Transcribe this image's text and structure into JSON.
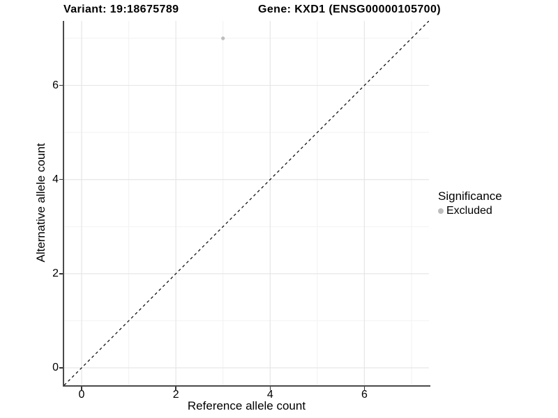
{
  "titles": {
    "left": "Variant: 19:18675789",
    "right": "Gene: KXD1 (ENSG00000105700)"
  },
  "axes": {
    "x": {
      "label": "Reference allele count"
    },
    "y": {
      "label": "Alternative allele count"
    }
  },
  "legend": {
    "title": "Significance",
    "items": [
      {
        "label": "Excluded",
        "color": "#bdbdbd"
      }
    ]
  },
  "colors": {
    "point": "#bdbdbd",
    "axis_line": "#4a4a4a",
    "grid_major": "#e6e6e6",
    "grid_minor": "#f2f2f2",
    "identity_line": "#000000"
  },
  "chart_data": {
    "type": "scatter",
    "title": "Variant: 19:18675789 | Gene: KXD1 (ENSG00000105700)",
    "xlabel": "Reference allele count",
    "ylabel": "Alternative allele count",
    "xlim": [
      -0.37,
      7.37
    ],
    "ylim": [
      -0.37,
      7.37
    ],
    "x_ticks": [
      0,
      2,
      4,
      6
    ],
    "y_ticks": [
      0,
      2,
      4,
      6
    ],
    "grid_major": [
      0,
      2,
      4,
      6
    ],
    "grid_minor": [
      1,
      3,
      5,
      7
    ],
    "series": [
      {
        "name": "Excluded",
        "color": "#bdbdbd",
        "points": [
          {
            "x": 3,
            "y": 7
          }
        ]
      }
    ],
    "identity_line": {
      "style": "dashed",
      "from": [
        -0.37,
        -0.37
      ],
      "to": [
        7.37,
        7.37
      ]
    },
    "legend_position": "right",
    "legend_title": "Significance",
    "grid": "on"
  }
}
